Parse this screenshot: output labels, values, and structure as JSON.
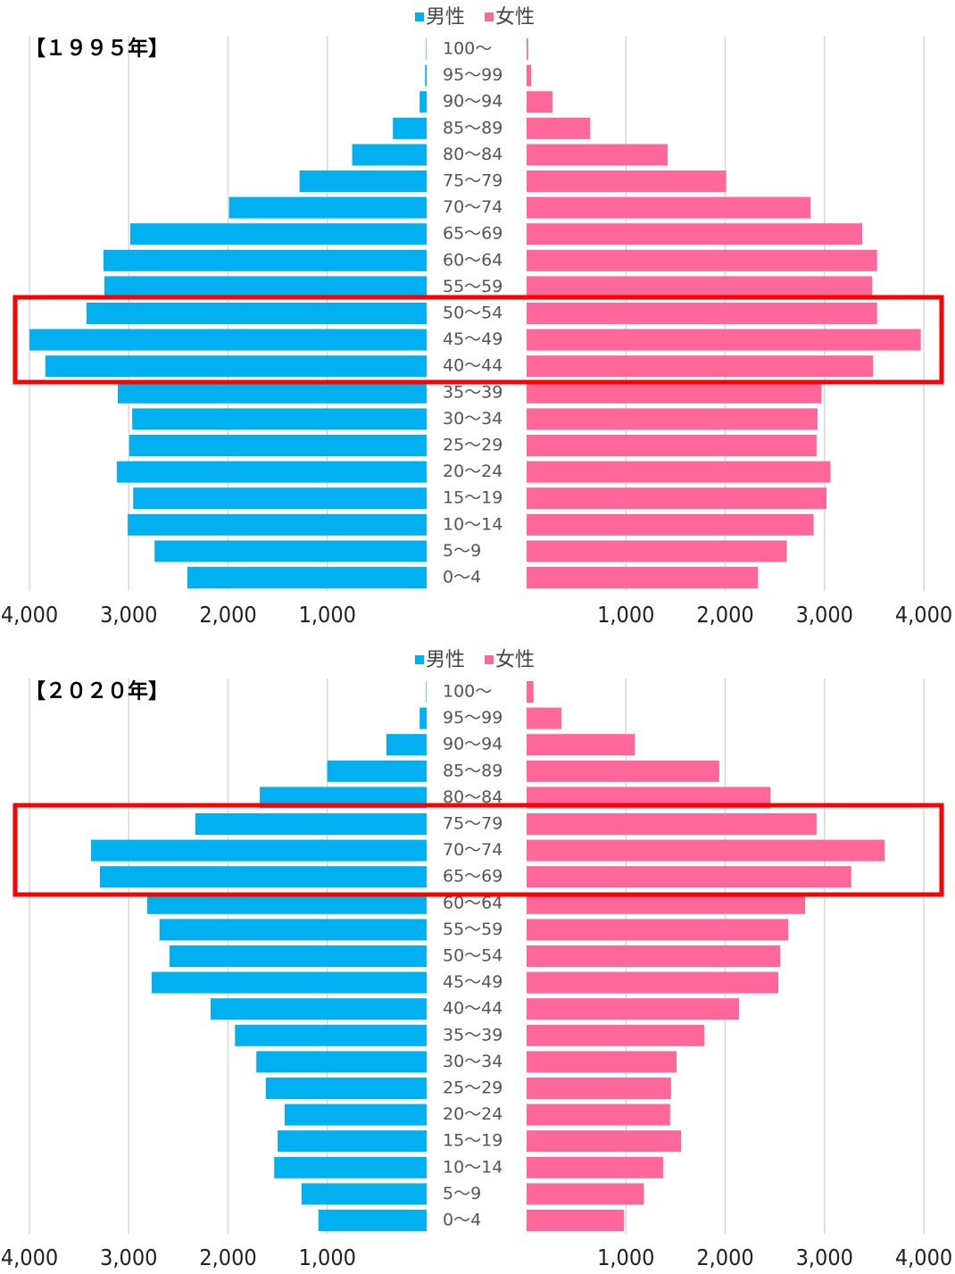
{
  "chart_data": [
    {
      "type": "bar",
      "title": "【１９９５年】",
      "categories": [
        "100～",
        "95～99",
        "90～94",
        "85～89",
        "80～84",
        "75～79",
        "70～74",
        "65～69",
        "60～64",
        "55～59",
        "50～54",
        "45～49",
        "40～44",
        "35～39",
        "30～34",
        "25～29",
        "20～24",
        "15～19",
        "10～14",
        "5～9",
        "0～4"
      ],
      "series": [
        {
          "name": "男性",
          "color": "#00b0f0",
          "values": [
            5,
            15,
            70,
            340,
            750,
            1280,
            1990,
            2985,
            3255,
            3245,
            3425,
            4000,
            3840,
            3110,
            2965,
            2995,
            3120,
            2955,
            3010,
            2740,
            2410
          ]
        },
        {
          "name": "女性",
          "color": "#ff6699",
          "values": [
            15,
            45,
            260,
            640,
            1420,
            2010,
            2860,
            3380,
            3530,
            3480,
            3530,
            3970,
            3490,
            2970,
            2930,
            2920,
            3060,
            3020,
            2890,
            2620,
            2330
          ]
        }
      ],
      "xlim": [
        0,
        4000
      ],
      "xticks": [
        {
          "value": 1000,
          "label": "1,000"
        },
        {
          "value": 2000,
          "label": "2,000"
        },
        {
          "value": 3000,
          "label": "3,000"
        },
        {
          "value": 4000,
          "label": "4,000"
        }
      ],
      "grid": true,
      "legend": "top"
    },
    {
      "type": "bar",
      "title": "【２０２０年】",
      "categories": [
        "100～",
        "95～99",
        "90～94",
        "85～89",
        "80～84",
        "75～79",
        "70～74",
        "65～69",
        "60～64",
        "55～59",
        "50～54",
        "45～49",
        "40～44",
        "35～39",
        "30～34",
        "25～29",
        "20～24",
        "15～19",
        "10～14",
        "5～9",
        "0～4"
      ],
      "series": [
        {
          "name": "男性",
          "color": "#00b0f0",
          "values": [
            5,
            70,
            405,
            1000,
            1680,
            2330,
            3380,
            3290,
            2815,
            2690,
            2590,
            2770,
            2175,
            1930,
            1715,
            1620,
            1430,
            1500,
            1535,
            1260,
            1090
          ]
        },
        {
          "name": "女性",
          "color": "#ff6699",
          "values": [
            70,
            350,
            1090,
            1940,
            2455,
            2920,
            3605,
            3270,
            2805,
            2635,
            2555,
            2535,
            2140,
            1790,
            1510,
            1455,
            1445,
            1555,
            1375,
            1180,
            980
          ]
        }
      ],
      "xlim": [
        0,
        4000
      ],
      "xticks": [
        {
          "value": 1000,
          "label": "1,000"
        },
        {
          "value": 2000,
          "label": "2,000"
        },
        {
          "value": 3000,
          "label": "3,000"
        },
        {
          "value": 4000,
          "label": "4,000"
        }
      ],
      "grid": true,
      "legend": "top"
    }
  ]
}
